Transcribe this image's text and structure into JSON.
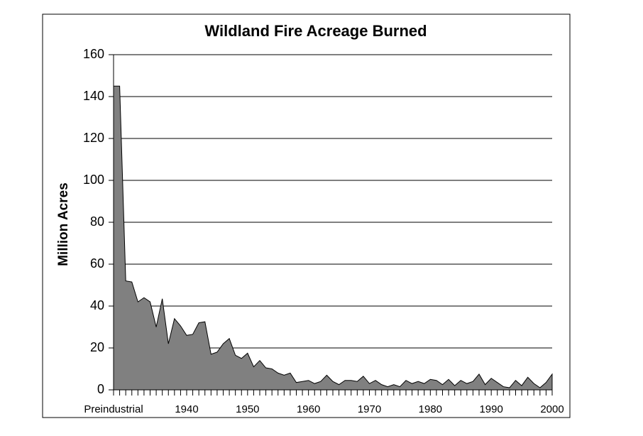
{
  "chart_data": {
    "type": "area",
    "title": "Wildland Fire Acreage Burned",
    "y_label": "Million Acres",
    "categories": [
      "Preindustrial",
      null,
      null,
      null,
      null,
      null,
      null,
      null,
      null,
      null,
      null,
      null,
      "1940",
      null,
      null,
      null,
      null,
      null,
      null,
      null,
      null,
      null,
      "1950",
      null,
      null,
      null,
      null,
      null,
      null,
      null,
      null,
      null,
      "1960",
      null,
      null,
      null,
      null,
      null,
      null,
      null,
      null,
      null,
      "1970",
      null,
      null,
      null,
      null,
      null,
      null,
      null,
      null,
      null,
      "1980",
      null,
      null,
      null,
      null,
      null,
      null,
      null,
      null,
      null,
      "1990",
      null,
      null,
      null,
      null,
      null,
      null,
      null,
      null,
      null,
      "2000"
    ],
    "values": [
      145,
      145,
      52,
      51.5,
      42,
      44,
      42,
      30,
      43.5,
      22,
      34,
      30.5,
      26,
      26.5,
      32,
      32.5,
      17,
      18,
      22,
      24.5,
      16.5,
      15,
      17.5,
      11,
      14,
      10.5,
      10,
      8,
      7,
      8,
      3.5,
      4,
      4.5,
      3,
      4,
      7,
      4,
      2.5,
      4.5,
      4.5,
      4,
      6.5,
      3,
      4.5,
      2.5,
      1.5,
      2.5,
      1.5,
      4.5,
      3,
      4,
      3,
      5,
      4.5,
      2.5,
      5,
      2,
      4.5,
      3,
      4,
      7.5,
      2.5,
      5.5,
      3.5,
      1.5,
      1,
      4.5,
      2,
      6,
      3,
      1,
      3.5,
      7.5
    ],
    "color": "#808080",
    "ylim": [
      0,
      160
    ],
    "yticks": [
      0,
      20,
      40,
      60,
      80,
      100,
      120,
      140,
      160
    ],
    "grid": true
  }
}
